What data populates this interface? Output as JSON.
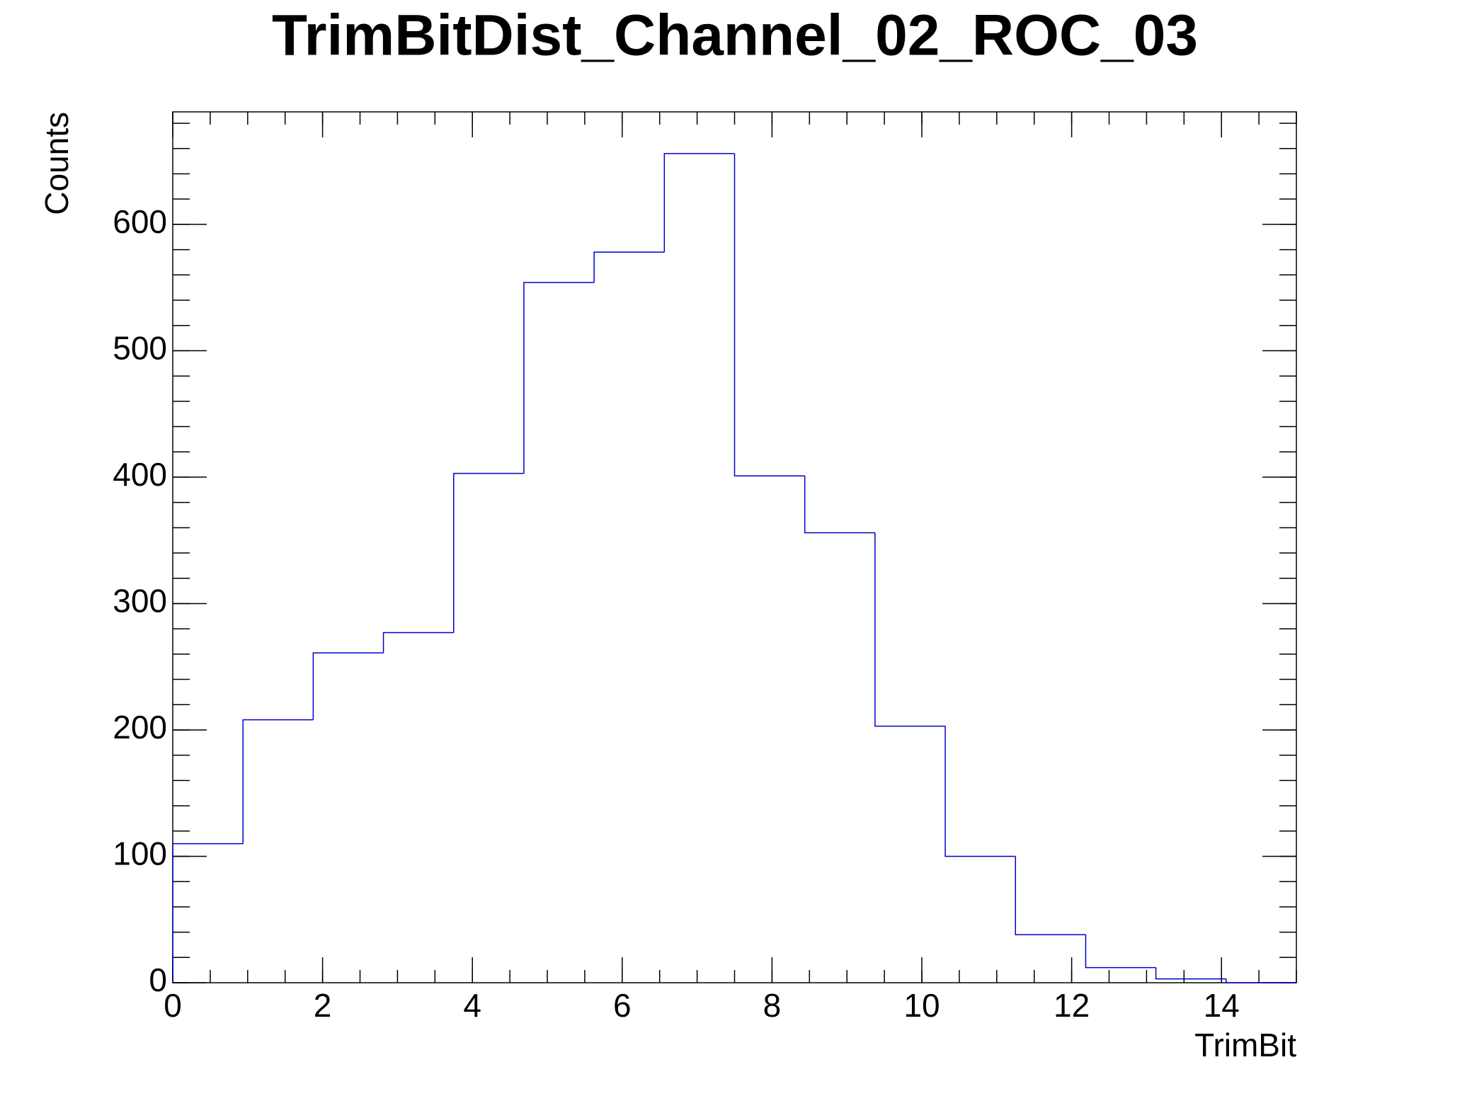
{
  "chart_data": {
    "type": "histogram",
    "title": "TrimBitDist_Channel_02_ROC_03",
    "x_label": "TrimBit",
    "y_label": "Counts",
    "bins": [
      0,
      0.9375,
      1.875,
      2.8125,
      3.75,
      4.6875,
      5.625,
      6.5625,
      7.5,
      8.4375,
      9.375,
      10.3125,
      11.25,
      12.1875,
      13.125,
      14.0625,
      15
    ],
    "values": [
      110,
      208,
      261,
      277,
      403,
      554,
      578,
      656,
      401,
      356,
      203,
      100,
      38,
      12,
      3,
      0
    ],
    "color": "#0000cc",
    "xlim": [
      0,
      15
    ],
    "xticks": [
      0,
      2,
      4,
      6,
      8,
      10,
      12,
      14
    ],
    "ylim": [
      0,
      689
    ],
    "yticks": [
      0,
      100,
      200,
      300,
      400,
      500,
      600
    ]
  }
}
